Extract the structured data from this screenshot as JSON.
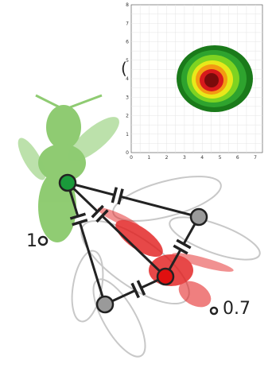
{
  "inset_plot": {
    "xticks": [
      "0",
      "1",
      "2",
      "3",
      "4",
      "5",
      "6",
      "7"
    ],
    "yticks": [
      "0",
      "1",
      "2",
      "3",
      "4",
      "5",
      "6",
      "7",
      "8"
    ]
  },
  "fragment": "(",
  "labels": {
    "left": "1",
    "right": "0.7"
  }
}
